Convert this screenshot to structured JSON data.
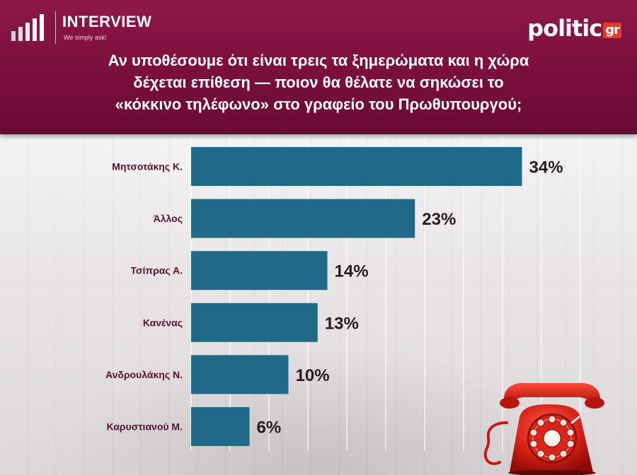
{
  "brand": {
    "name": "INTERVIEW",
    "tagline": "We simply ask!"
  },
  "logo": {
    "text": "politic",
    "suffix": "gr",
    "suffix_color": "#e23a2c"
  },
  "question": {
    "line1": "Αν υποθέσουμε ότι είναι τρεις τα ξημερώματα και η χώρα",
    "line2": "δέχεται επίθεση — ποιον θα θέλατε να σηκώσει το",
    "line3": "«κόκκινο τηλέφωνο» στο γραφείο του Πρωθυπουργού;"
  },
  "colors": {
    "header": "#7a0f3b",
    "bar": "#1e6a88",
    "category_text": "#5a1030",
    "value_text": "#2a1a20"
  },
  "chart_data": {
    "type": "bar",
    "orientation": "horizontal",
    "categories": [
      "Μητσοτάκης Κ.",
      "Άλλος",
      "Τσίπρας Α.",
      "Κανένας",
      "Ανδρουλάκης Ν.",
      "Καρυστιανού Μ."
    ],
    "values": [
      34,
      23,
      14,
      13,
      10,
      6
    ],
    "value_labels": [
      "34%",
      "23%",
      "14%",
      "13%",
      "10%",
      "6%"
    ],
    "xlim": [
      0,
      40
    ],
    "grid": true
  }
}
